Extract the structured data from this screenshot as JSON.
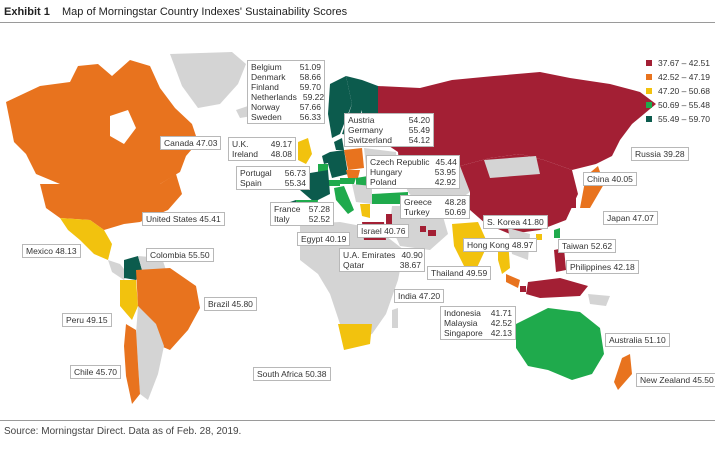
{
  "header": {
    "exhibit": "Exhibit 1",
    "title": "Map of Morningstar Country Indexes' Sustainability Scores"
  },
  "source": "Source: Morningstar Direct. Data as of Feb. 28, 2019.",
  "legend": [
    {
      "label": "37.67 – 42.51",
      "color": "#a31f34"
    },
    {
      "label": "42.52 – 47.19",
      "color": "#e8731e"
    },
    {
      "label": "47.20 – 50.68",
      "color": "#f2c20e"
    },
    {
      "label": "50.69 – 55.48",
      "color": "#1faa4c"
    },
    {
      "label": "55.49 – 59.70",
      "color": "#0c5b4d"
    }
  ],
  "countries": {
    "canada": {
      "name": "Canada",
      "score": "47.03"
    },
    "united_states": {
      "name": "United States",
      "score": "45.41"
    },
    "mexico": {
      "name": "Mexico",
      "score": "48.13"
    },
    "colombia": {
      "name": "Colombia",
      "score": "55.50"
    },
    "peru": {
      "name": "Peru",
      "score": "49.15"
    },
    "brazil": {
      "name": "Brazil",
      "score": "45.80"
    },
    "chile": {
      "name": "Chile",
      "score": "45.70"
    },
    "uk": {
      "name": "U.K.",
      "score": "49.17"
    },
    "ireland": {
      "name": "Ireland",
      "score": "48.08"
    },
    "portugal": {
      "name": "Portugal",
      "score": "56.73"
    },
    "spain": {
      "name": "Spain",
      "score": "55.34"
    },
    "france": {
      "name": "France",
      "score": "57.28"
    },
    "italy": {
      "name": "Italy",
      "score": "52.52"
    },
    "belgium": {
      "name": "Belgium",
      "score": "51.09"
    },
    "denmark": {
      "name": "Denmark",
      "score": "58.66"
    },
    "finland": {
      "name": "Finland",
      "score": "59.70"
    },
    "netherlands": {
      "name": "Netherlands",
      "score": "59.22"
    },
    "norway": {
      "name": "Norway",
      "score": "57.66"
    },
    "sweden": {
      "name": "Sweden",
      "score": "56.33"
    },
    "austria": {
      "name": "Austria",
      "score": "54.20"
    },
    "germany": {
      "name": "Germany",
      "score": "55.49"
    },
    "switzerland": {
      "name": "Switzerland",
      "score": "54.12"
    },
    "czech_republic": {
      "name": "Czech Republic",
      "score": "45.44"
    },
    "hungary": {
      "name": "Hungary",
      "score": "53.95"
    },
    "poland": {
      "name": "Poland",
      "score": "42.92"
    },
    "greece": {
      "name": "Greece",
      "score": "48.28"
    },
    "turkey": {
      "name": "Turkey",
      "score": "50.69"
    },
    "egypt": {
      "name": "Egypt",
      "score": "40.19"
    },
    "israel": {
      "name": "Israel",
      "score": "40.76"
    },
    "uae": {
      "name": "U.A. Emirates",
      "score": "40.90"
    },
    "qatar": {
      "name": "Qatar",
      "score": "38.67"
    },
    "south_africa": {
      "name": "South Africa",
      "score": "50.38"
    },
    "russia": {
      "name": "Russia",
      "score": "39.28"
    },
    "china": {
      "name": "China",
      "score": "40.05"
    },
    "japan": {
      "name": "Japan",
      "score": "47.07"
    },
    "south_korea": {
      "name": "S. Korea",
      "score": "41.80"
    },
    "taiwan": {
      "name": "Taiwan",
      "score": "52.62"
    },
    "hong_kong": {
      "name": "Hong Kong",
      "score": "48.97"
    },
    "philippines": {
      "name": "Philippines",
      "score": "42.18"
    },
    "thailand": {
      "name": "Thailand",
      "score": "49.59"
    },
    "india": {
      "name": "India",
      "score": "47.20"
    },
    "indonesia": {
      "name": "Indonesia",
      "score": "41.71"
    },
    "malaysia": {
      "name": "Malaysia",
      "score": "42.52"
    },
    "singapore": {
      "name": "Singapore",
      "score": "42.13"
    },
    "australia": {
      "name": "Australia",
      "score": "51.10"
    },
    "new_zealand": {
      "name": "New Zealand",
      "score": "45.50"
    }
  }
}
